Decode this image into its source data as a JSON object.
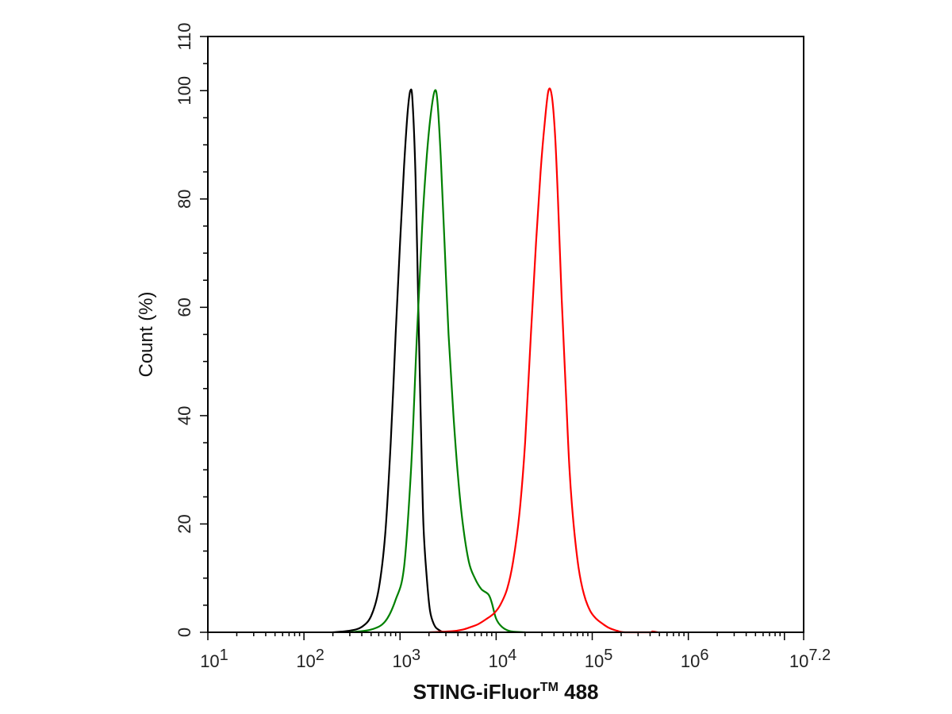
{
  "chart_data": {
    "type": "line",
    "xlabel": "STING-iFluor",
    "xlabel_sup": "TM",
    "xlabel_tail": " 488",
    "ylabel": "Count  (%)",
    "x_scale": "log10",
    "xlim": [
      10,
      15848931.92
    ],
    "ylim": [
      0,
      110
    ],
    "y_ticks": [
      0,
      20,
      40,
      60,
      80,
      100,
      110
    ],
    "y_tick_labels": [
      "0",
      "20",
      "40",
      "60",
      "80",
      "100",
      "110"
    ],
    "x_ticks": [
      {
        "base": "10",
        "exp": "1",
        "value": 10
      },
      {
        "base": "10",
        "exp": "2",
        "value": 100
      },
      {
        "base": "10",
        "exp": "3",
        "value": 1000
      },
      {
        "base": "10",
        "exp": "4",
        "value": 10000
      },
      {
        "base": "10",
        "exp": "5",
        "value": 100000
      },
      {
        "base": "10",
        "exp": "6",
        "value": 1000000
      },
      {
        "base": "10",
        "exp": "7.2",
        "value": 15848931.92
      }
    ],
    "grid": false,
    "series": [
      {
        "color": "#000000",
        "points": [
          [
            200,
            0
          ],
          [
            300,
            0.3
          ],
          [
            400,
            1
          ],
          [
            500,
            3
          ],
          [
            600,
            8
          ],
          [
            700,
            18
          ],
          [
            800,
            35
          ],
          [
            900,
            55
          ],
          [
            1000,
            72
          ],
          [
            1100,
            86
          ],
          [
            1200,
            96
          ],
          [
            1280,
            100
          ],
          [
            1350,
            98
          ],
          [
            1450,
            84
          ],
          [
            1550,
            60
          ],
          [
            1650,
            38
          ],
          [
            1750,
            20
          ],
          [
            1900,
            10
          ],
          [
            2050,
            4
          ],
          [
            2250,
            1.5
          ],
          [
            2500,
            0.5
          ],
          [
            3000,
            0
          ],
          [
            5000,
            0
          ]
        ]
      },
      {
        "color": "#008000",
        "points": [
          [
            300,
            0
          ],
          [
            500,
            0.5
          ],
          [
            700,
            2
          ],
          [
            900,
            6
          ],
          [
            1100,
            12
          ],
          [
            1300,
            30
          ],
          [
            1500,
            55
          ],
          [
            1700,
            75
          ],
          [
            1900,
            88
          ],
          [
            2100,
            96
          ],
          [
            2300,
            100
          ],
          [
            2450,
            98
          ],
          [
            2650,
            88
          ],
          [
            2900,
            72
          ],
          [
            3200,
            55
          ],
          [
            3600,
            40
          ],
          [
            4000,
            29
          ],
          [
            4500,
            20
          ],
          [
            5200,
            13
          ],
          [
            6000,
            10
          ],
          [
            7000,
            8
          ],
          [
            8300,
            7
          ],
          [
            9000,
            5.5
          ],
          [
            10000,
            2.5
          ],
          [
            11500,
            1
          ],
          [
            14000,
            0.2
          ],
          [
            20000,
            0
          ]
        ]
      },
      {
        "color": "#ff0000",
        "points": [
          [
            2000,
            0
          ],
          [
            3500,
            0.2
          ],
          [
            4500,
            0.5
          ],
          [
            5500,
            1
          ],
          [
            6500,
            1.5
          ],
          [
            8000,
            2.5
          ],
          [
            9500,
            3.5
          ],
          [
            11000,
            5
          ],
          [
            13000,
            8
          ],
          [
            15000,
            13
          ],
          [
            17500,
            22
          ],
          [
            20000,
            35
          ],
          [
            23000,
            55
          ],
          [
            26000,
            72
          ],
          [
            29000,
            85
          ],
          [
            32000,
            94
          ],
          [
            35000,
            100
          ],
          [
            38000,
            99
          ],
          [
            41000,
            92
          ],
          [
            44000,
            80
          ],
          [
            48000,
            62
          ],
          [
            53000,
            45
          ],
          [
            58000,
            30
          ],
          [
            64000,
            20
          ],
          [
            72000,
            12
          ],
          [
            82000,
            7
          ],
          [
            95000,
            4
          ],
          [
            110000,
            2.5
          ],
          [
            130000,
            1.5
          ],
          [
            150000,
            0.8
          ],
          [
            180000,
            0.3
          ],
          [
            220000,
            0
          ],
          [
            400000,
            0
          ],
          [
            420000,
            0.15
          ],
          [
            450000,
            0.1
          ],
          [
            480000,
            0
          ]
        ]
      }
    ]
  }
}
